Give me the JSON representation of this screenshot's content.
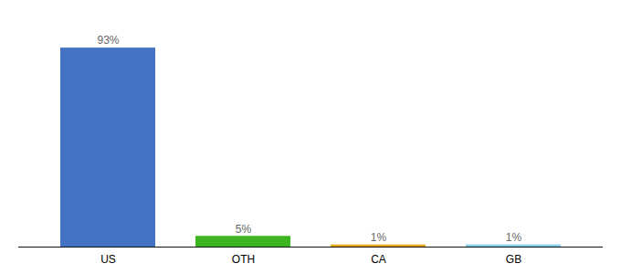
{
  "chart_data": {
    "type": "bar",
    "categories": [
      "US",
      "OTH",
      "CA",
      "GB"
    ],
    "values": [
      93,
      5,
      1,
      1
    ],
    "value_labels": [
      "93%",
      "5%",
      "1%",
      "1%"
    ],
    "colors": [
      "#4472c4",
      "#3cb520",
      "#e6a817",
      "#87ceeb"
    ],
    "ylim": [
      0,
      105
    ],
    "data_labels": true,
    "tick_labels": "x",
    "grid": false
  }
}
